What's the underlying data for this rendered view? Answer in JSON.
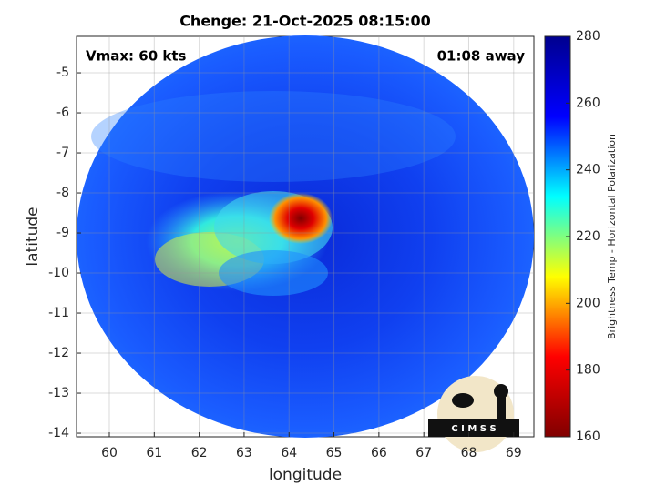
{
  "chart_data": {
    "type": "image",
    "title": "Chenge: 21-Oct-2025 08:15:00",
    "xlabel": "longitude",
    "ylabel": "latitude",
    "annotations": [
      "Vmax: 60 kts",
      "01:08 away"
    ],
    "logo_text": "C I M S S",
    "xlim": [
      59.27,
      69.45
    ],
    "ylim": [
      -14.09,
      -4.09
    ],
    "xticks": [
      60,
      61,
      62,
      63,
      64,
      65,
      66,
      67,
      68,
      69
    ],
    "yticks": [
      -5,
      -6,
      -7,
      -8,
      -9,
      -10,
      -11,
      -12,
      -13,
      -14
    ],
    "grid": true,
    "colorbar": {
      "label": "Brightness Temp - Horizontal Polarization",
      "lim": [
        160,
        280
      ],
      "ticks": [
        160,
        180,
        200,
        220,
        240,
        260,
        280
      ],
      "colormap": "jet"
    }
  }
}
